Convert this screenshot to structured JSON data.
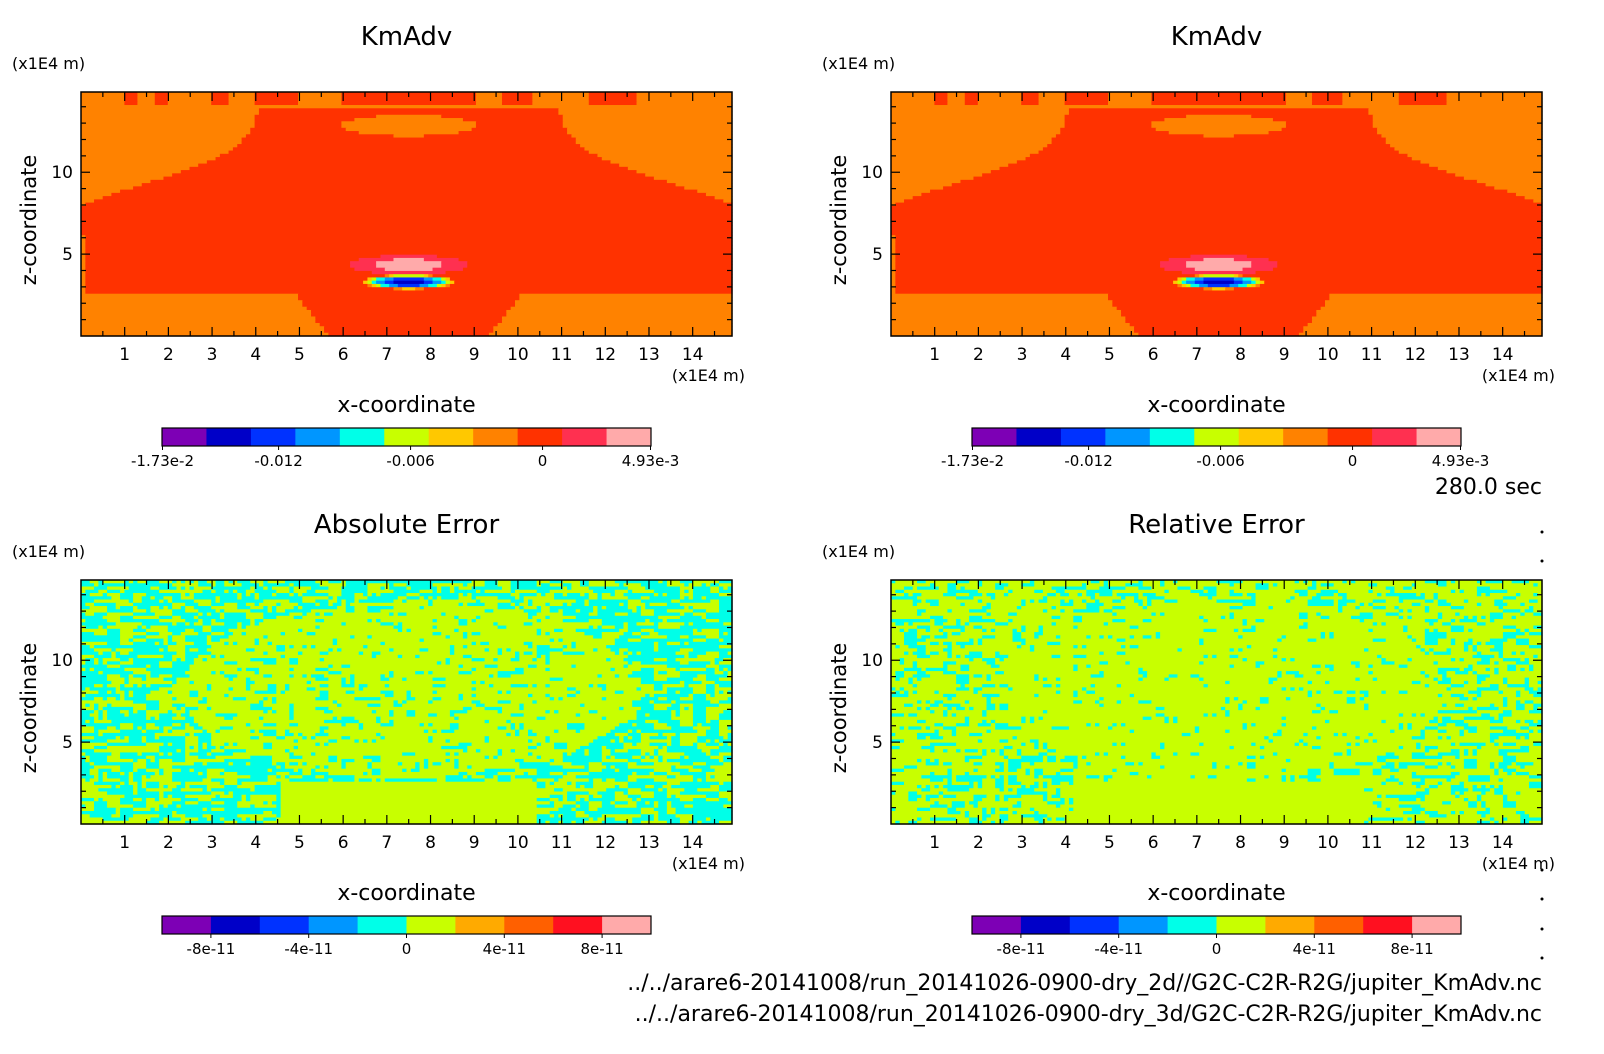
{
  "time_label": "280.0 sec",
  "file_paths": [
    "../../arare6-20141008/run_20141026-0900-dry_2d//G2C-C2R-R2G/jupiter_KmAdv.nc",
    "../../arare6-20141008/run_20141026-0900-dry_3d/G2C-C2R-R2G/jupiter_KmAdv.nc"
  ],
  "colors": {
    "kmadv_scale": [
      "#7d00b5",
      "#0000c8",
      "#0032ff",
      "#0096ff",
      "#00ffe8",
      "#c8ff00",
      "#ffc800",
      "#ff8200",
      "#ff3200",
      "#ff3050",
      "#ffaaaa"
    ],
    "error_scale": [
      "#7d00b5",
      "#0000c8",
      "#0032ff",
      "#0096ff",
      "#00ffe8",
      "#c8ff00",
      "#ffaa00",
      "#ff6000",
      "#ff1020",
      "#ffaaaa"
    ]
  },
  "chart_data": [
    {
      "type": "heatmap",
      "title": "KmAdv",
      "xlabel": "x-coordinate",
      "ylabel": "z-coordinate",
      "x_unit": "(x1E4 m)",
      "y_unit": "(x1E4 m)",
      "xlim": [
        0,
        14.9
      ],
      "ylim": [
        0,
        14.9
      ],
      "x_ticks": [
        "1",
        "2",
        "3",
        "4",
        "5",
        "6",
        "7",
        "8",
        "9",
        "10",
        "11",
        "12",
        "13",
        "14"
      ],
      "y_ticks": [
        "5",
        "10"
      ],
      "colorbar_labels": [
        "-1.73e-2",
        "-0.012",
        "-0.006",
        "0",
        "4.93e-3"
      ],
      "color_range": [
        -0.0173,
        0.00493
      ]
    },
    {
      "type": "heatmap",
      "title": "KmAdv",
      "xlabel": "x-coordinate",
      "ylabel": "z-coordinate",
      "x_unit": "(x1E4 m)",
      "y_unit": "(x1E4 m)",
      "xlim": [
        0,
        14.9
      ],
      "ylim": [
        0,
        14.9
      ],
      "x_ticks": [
        "1",
        "2",
        "3",
        "4",
        "5",
        "6",
        "7",
        "8",
        "9",
        "10",
        "11",
        "12",
        "13",
        "14"
      ],
      "y_ticks": [
        "5",
        "10"
      ],
      "colorbar_labels": [
        "-1.73e-2",
        "-0.012",
        "-0.006",
        "0",
        "4.93e-3"
      ],
      "color_range": [
        -0.0173,
        0.00493
      ]
    },
    {
      "type": "heatmap",
      "title": "Absolute Error",
      "xlabel": "x-coordinate",
      "ylabel": "z-coordinate",
      "x_unit": "(x1E4 m)",
      "y_unit": "(x1E4 m)",
      "xlim": [
        0,
        14.9
      ],
      "ylim": [
        0,
        14.9
      ],
      "x_ticks": [
        "1",
        "2",
        "3",
        "4",
        "5",
        "6",
        "7",
        "8",
        "9",
        "10",
        "11",
        "12",
        "13",
        "14"
      ],
      "y_ticks": [
        "5",
        "10"
      ],
      "colorbar_labels": [
        "-8e-11",
        "-4e-11",
        "0",
        "4e-11",
        "8e-11"
      ],
      "color_range": [
        -1e-10,
        1e-10
      ]
    },
    {
      "type": "heatmap",
      "title": "Relative Error",
      "xlabel": "x-coordinate",
      "ylabel": "z-coordinate",
      "x_unit": "(x1E4 m)",
      "y_unit": "(x1E4 m)",
      "xlim": [
        0,
        14.9
      ],
      "ylim": [
        0,
        14.9
      ],
      "x_ticks": [
        "1",
        "2",
        "3",
        "4",
        "5",
        "6",
        "7",
        "8",
        "9",
        "10",
        "11",
        "12",
        "13",
        "14"
      ],
      "y_ticks": [
        "5",
        "10"
      ],
      "colorbar_labels": [
        "-8e-11",
        "-4e-11",
        "0",
        "4e-11",
        "8e-11"
      ],
      "color_range": [
        -1e-10,
        1e-10
      ]
    }
  ]
}
